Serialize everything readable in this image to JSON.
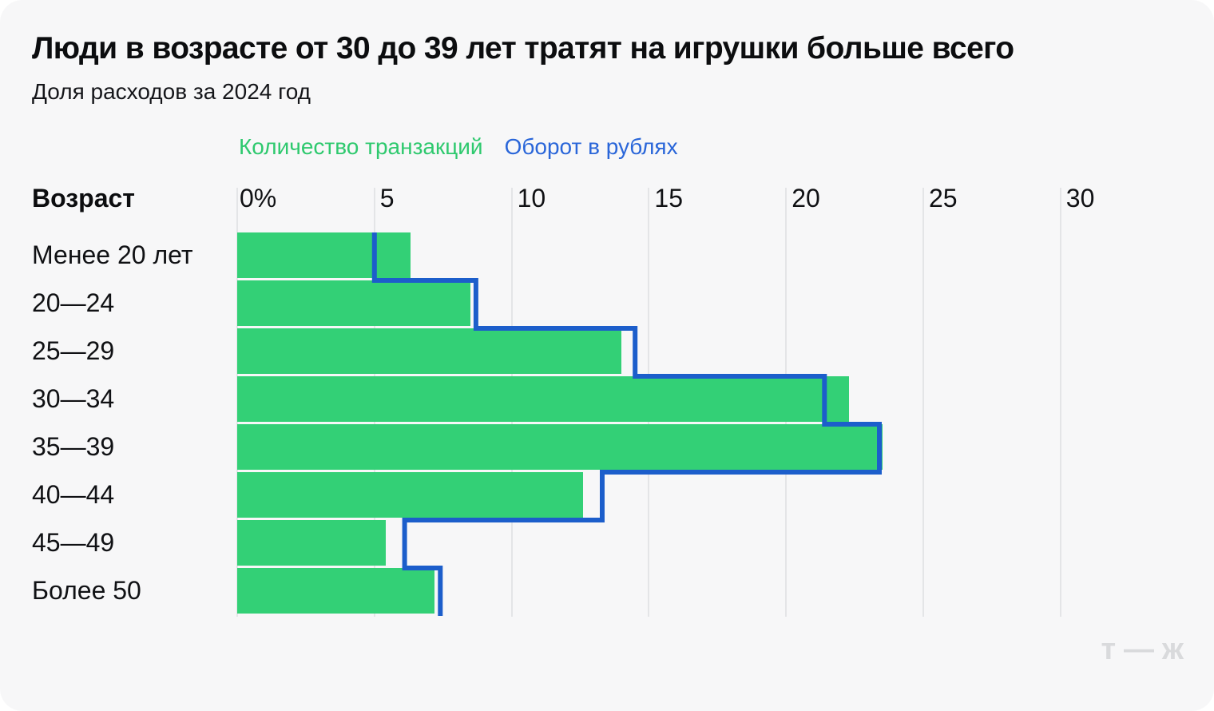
{
  "page": {
    "background": "#ffffff",
    "card_background": "#f7f7f8"
  },
  "chart_data": {
    "type": "bar",
    "orientation": "horizontal",
    "title": "Люди в возрасте от 30 до 39 лет тратят на игрушки больше всего",
    "subtitle": "Доля расходов за 2024 год",
    "row_header": "Возраст",
    "categories": [
      "Менее 20 лет",
      "20—24",
      "25—29",
      "30—34",
      "35—39",
      "40—44",
      "45—49",
      "Более 50"
    ],
    "series": [
      {
        "name": "Количество транзакций",
        "style": "filled-bar",
        "color": "#33d076",
        "values": [
          6.3,
          8.5,
          14.0,
          22.3,
          23.5,
          12.6,
          5.4,
          7.2
        ]
      },
      {
        "name": "Оборот в рублях",
        "style": "outline-step-line",
        "color": "#1c5ecb",
        "values": [
          5.0,
          8.7,
          14.5,
          21.4,
          23.4,
          13.3,
          6.1,
          7.4
        ]
      }
    ],
    "unit": "percent",
    "x_tick_labels": [
      "0%",
      "5",
      "10",
      "15",
      "20",
      "25",
      "30"
    ],
    "x_tick_values": [
      0,
      5,
      10,
      15,
      20,
      25,
      30
    ],
    "xlim": [
      0,
      34.4
    ],
    "grid": true,
    "legend_position": "top"
  },
  "legend": {
    "items": [
      {
        "label": "Количество транзакций",
        "color": "#2ec96e"
      },
      {
        "label": "Оборот в рублях",
        "color": "#2a66d9"
      }
    ]
  },
  "colors": {
    "grid_line": "#e4e5e7",
    "bar_green": "#33d076",
    "line_blue": "#1c5ecb",
    "logo_gray": "#d9dadc"
  },
  "footer": {
    "logo_text": "т—ж"
  }
}
